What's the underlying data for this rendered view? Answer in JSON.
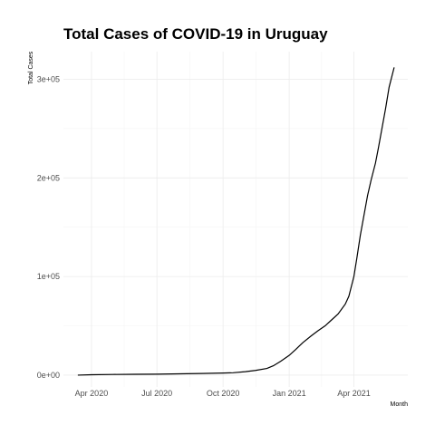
{
  "chart_data": {
    "type": "line",
    "title": "Total Cases of COVID-19 in Uruguay",
    "xlabel": "Month",
    "ylabel": "Total Cases",
    "x_ticks": [
      "2020-04-01",
      "2020-07-01",
      "2020-10-01",
      "2021-01-01",
      "2021-04-01"
    ],
    "x_tick_labels": [
      "Apr 2020",
      "Jul 2020",
      "Oct 2020",
      "Jan 2021",
      "Apr 2021"
    ],
    "y_ticks": [
      0,
      100000,
      200000,
      300000
    ],
    "y_tick_labels": [
      "0e+00",
      "1e+05",
      "2e+05",
      "3e+05"
    ],
    "xlim": [
      "2020-02-22",
      "2021-06-15"
    ],
    "ylim": [
      -12000,
      328000
    ],
    "grid": true,
    "series": [
      {
        "x": [
          "2020-03-13",
          "2020-04-01",
          "2020-05-01",
          "2020-06-01",
          "2020-07-01",
          "2020-08-01",
          "2020-09-01",
          "2020-10-01",
          "2020-10-15",
          "2020-11-01",
          "2020-11-15",
          "2020-12-01",
          "2020-12-10",
          "2020-12-20",
          "2021-01-01",
          "2021-01-10",
          "2021-01-20",
          "2021-02-01",
          "2021-02-10",
          "2021-02-20",
          "2021-03-01",
          "2021-03-10",
          "2021-03-20",
          "2021-03-25",
          "2021-04-01",
          "2021-04-05",
          "2021-04-10",
          "2021-04-15",
          "2021-04-20",
          "2021-04-25",
          "2021-05-01",
          "2021-05-05",
          "2021-05-10",
          "2021-05-15",
          "2021-05-20",
          "2021-05-27"
        ],
        "values": [
          4,
          400,
          700,
          850,
          950,
          1300,
          1700,
          2100,
          2400,
          3500,
          4800,
          6800,
          9500,
          14000,
          20000,
          26000,
          33000,
          40000,
          45000,
          50000,
          56000,
          62000,
          72000,
          80000,
          100000,
          118000,
          142000,
          162000,
          182000,
          198000,
          215000,
          230000,
          250000,
          270000,
          292000,
          312000
        ]
      }
    ]
  }
}
